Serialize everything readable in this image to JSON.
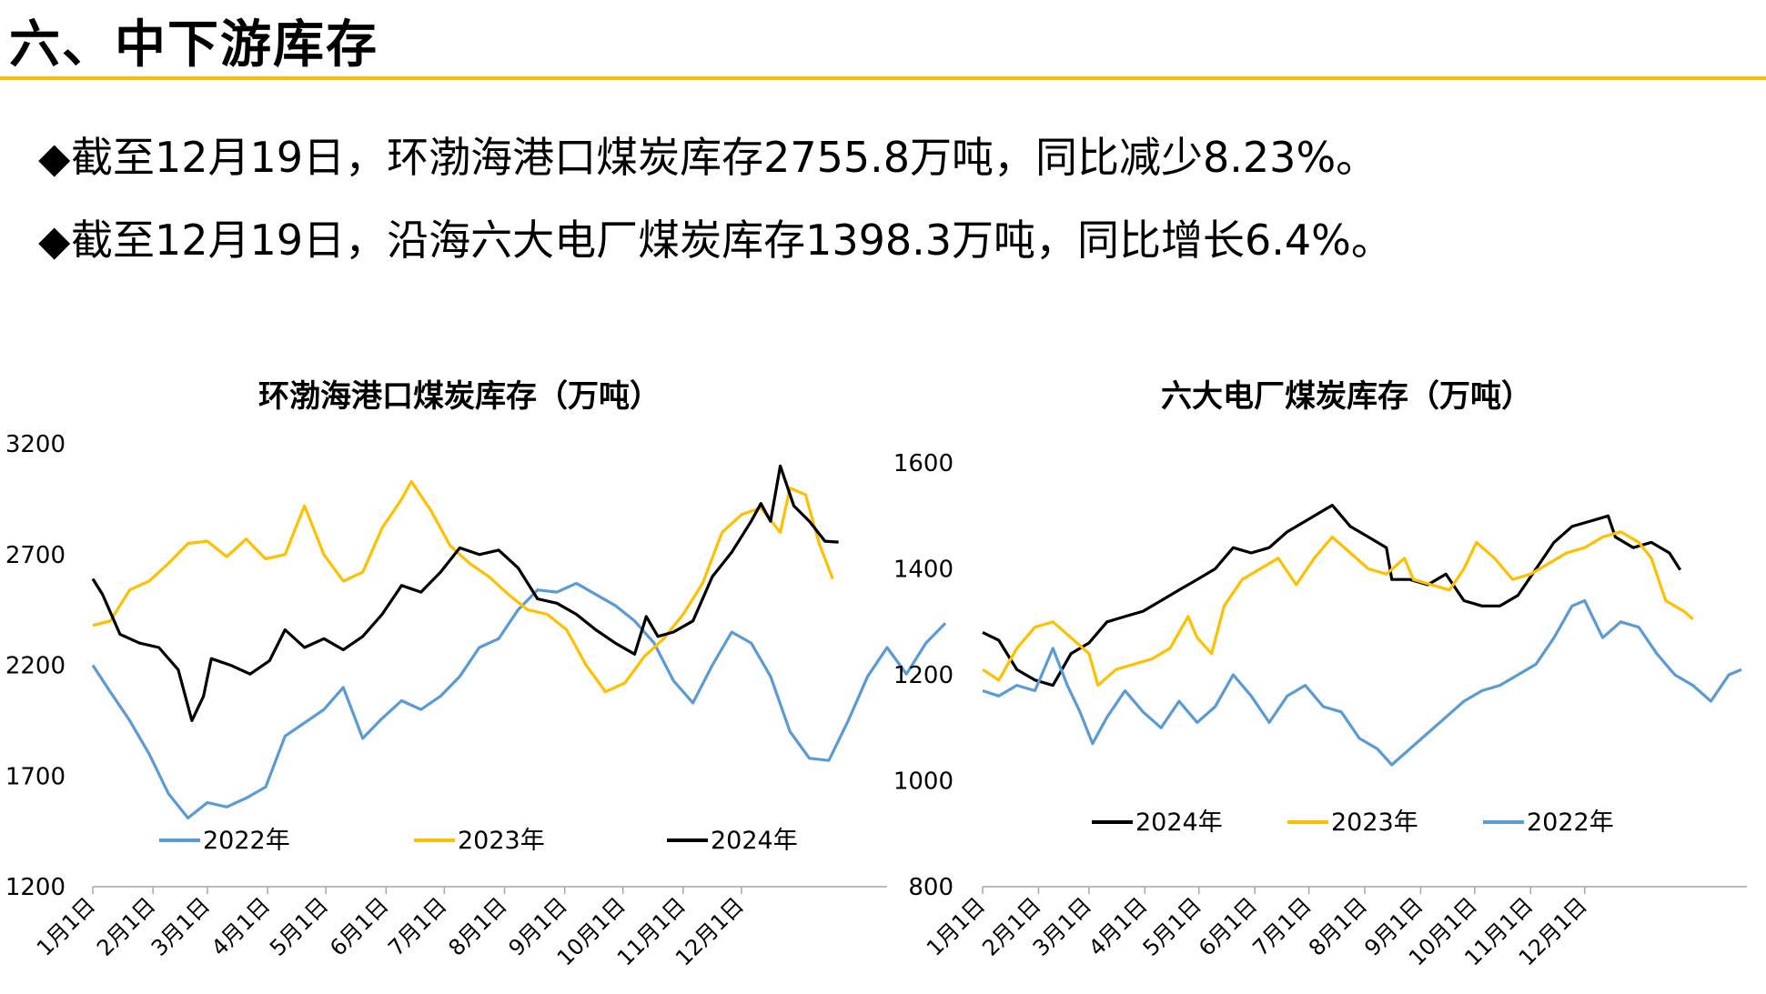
{
  "page": {
    "title": "六、中下游库存",
    "bullets": [
      {
        "icon": "◆",
        "text": "截至12月19日，环渤海港口煤炭库存2755.8万吨，同比减少8.23%。"
      },
      {
        "icon": "◆",
        "text": "截至12月19日，沿海六大电厂煤炭库存1398.3万吨，同比增长6.4%。"
      }
    ],
    "colors": {
      "accent_rule": "#F5C000"
    }
  },
  "chart_data": [
    {
      "type": "line",
      "title": "环渤海港口煤炭库存（万吨）",
      "xlabel": "",
      "ylabel": "",
      "x_unit": "day_of_year",
      "categories": [
        "1月1日",
        "2月1日",
        "3月1日",
        "4月1日",
        "5月1日",
        "6月1日",
        "7月1日",
        "8月1日",
        "9月1日",
        "10月1日",
        "11月1日",
        "12月1日"
      ],
      "ylim": [
        1200,
        3200
      ],
      "yticks": [
        "1200",
        "1700",
        "2200",
        "2700",
        "3200"
      ],
      "grid": false,
      "legend": "bottom",
      "series": [
        {
          "name": "2022年",
          "color": "#5B9BD5",
          "points": [
            [
              1,
              2200
            ],
            [
              10,
              2080
            ],
            [
              20,
              1950
            ],
            [
              30,
              1800
            ],
            [
              40,
              1620
            ],
            [
              50,
              1510
            ],
            [
              60,
              1580
            ],
            [
              70,
              1560
            ],
            [
              80,
              1600
            ],
            [
              90,
              1650
            ],
            [
              100,
              1880
            ],
            [
              110,
              1940
            ],
            [
              120,
              2000
            ],
            [
              130,
              2100
            ],
            [
              140,
              1870
            ],
            [
              150,
              1960
            ],
            [
              160,
              2040
            ],
            [
              170,
              2000
            ],
            [
              180,
              2060
            ],
            [
              190,
              2150
            ],
            [
              200,
              2280
            ],
            [
              210,
              2320
            ],
            [
              220,
              2450
            ],
            [
              230,
              2540
            ],
            [
              240,
              2530
            ],
            [
              250,
              2570
            ],
            [
              260,
              2520
            ],
            [
              270,
              2470
            ],
            [
              280,
              2400
            ],
            [
              290,
              2300
            ],
            [
              300,
              2130
            ],
            [
              310,
              2030
            ],
            [
              320,
              2200
            ],
            [
              330,
              2350
            ],
            [
              340,
              2300
            ],
            [
              350,
              2150
            ],
            [
              360,
              1900
            ],
            [
              370,
              1780
            ],
            [
              380,
              1770
            ],
            [
              390,
              1950
            ],
            [
              400,
              2150
            ],
            [
              410,
              2280
            ],
            [
              420,
              2160
            ],
            [
              430,
              2300
            ],
            [
              440,
              2390
            ]
          ]
        },
        {
          "name": "2023年",
          "color": "#FFC000",
          "points": [
            [
              1,
              2380
            ],
            [
              10,
              2400
            ],
            [
              20,
              2540
            ],
            [
              30,
              2580
            ],
            [
              40,
              2660
            ],
            [
              50,
              2750
            ],
            [
              60,
              2760
            ],
            [
              70,
              2690
            ],
            [
              80,
              2770
            ],
            [
              90,
              2680
            ],
            [
              100,
              2700
            ],
            [
              110,
              2920
            ],
            [
              120,
              2700
            ],
            [
              130,
              2580
            ],
            [
              140,
              2620
            ],
            [
              150,
              2820
            ],
            [
              160,
              2950
            ],
            [
              165,
              3030
            ],
            [
              175,
              2900
            ],
            [
              185,
              2740
            ],
            [
              195,
              2660
            ],
            [
              205,
              2600
            ],
            [
              215,
              2520
            ],
            [
              225,
              2450
            ],
            [
              235,
              2430
            ],
            [
              245,
              2360
            ],
            [
              255,
              2200
            ],
            [
              265,
              2080
            ],
            [
              275,
              2120
            ],
            [
              285,
              2240
            ],
            [
              295,
              2320
            ],
            [
              305,
              2430
            ],
            [
              315,
              2570
            ],
            [
              325,
              2800
            ],
            [
              335,
              2880
            ],
            [
              345,
              2910
            ],
            [
              355,
              2800
            ],
            [
              360,
              3000
            ],
            [
              368,
              2970
            ],
            [
              375,
              2750
            ],
            [
              382,
              2590
            ]
          ]
        },
        {
          "name": "2024年",
          "color": "#000000",
          "points": [
            [
              1,
              2590
            ],
            [
              6,
              2520
            ],
            [
              15,
              2340
            ],
            [
              25,
              2300
            ],
            [
              35,
              2280
            ],
            [
              45,
              2180
            ],
            [
              52,
              1950
            ],
            [
              58,
              2060
            ],
            [
              62,
              2230
            ],
            [
              72,
              2200
            ],
            [
              82,
              2160
            ],
            [
              92,
              2220
            ],
            [
              100,
              2360
            ],
            [
              110,
              2280
            ],
            [
              120,
              2320
            ],
            [
              130,
              2270
            ],
            [
              140,
              2330
            ],
            [
              150,
              2430
            ],
            [
              160,
              2560
            ],
            [
              170,
              2530
            ],
            [
              180,
              2620
            ],
            [
              190,
              2730
            ],
            [
              200,
              2700
            ],
            [
              210,
              2720
            ],
            [
              220,
              2640
            ],
            [
              230,
              2500
            ],
            [
              240,
              2480
            ],
            [
              250,
              2430
            ],
            [
              260,
              2360
            ],
            [
              270,
              2300
            ],
            [
              280,
              2250
            ],
            [
              286,
              2420
            ],
            [
              292,
              2330
            ],
            [
              300,
              2350
            ],
            [
              310,
              2400
            ],
            [
              320,
              2600
            ],
            [
              330,
              2710
            ],
            [
              340,
              2850
            ],
            [
              345,
              2930
            ],
            [
              350,
              2850
            ],
            [
              355,
              3100
            ],
            [
              362,
              2920
            ],
            [
              370,
              2850
            ],
            [
              378,
              2760
            ],
            [
              385,
              2756
            ]
          ]
        }
      ]
    },
    {
      "type": "line",
      "title": "六大电厂煤炭库存（万吨）",
      "xlabel": "",
      "ylabel": "",
      "x_unit": "day_of_year",
      "categories": [
        "1月1日",
        "2月1日",
        "3月1日",
        "4月1日",
        "5月1日",
        "6月1日",
        "7月1日",
        "8月1日",
        "9月1日",
        "10月1日",
        "11月1日",
        "12月1日"
      ],
      "ylim": [
        800,
        1600
      ],
      "yticks": [
        "800",
        "1000",
        "1200",
        "1400",
        "1600"
      ],
      "grid": false,
      "legend": "bottom",
      "series": [
        {
          "name": "2024年",
          "color": "#000000",
          "points": [
            [
              1,
              1280
            ],
            [
              10,
              1265
            ],
            [
              20,
              1210
            ],
            [
              30,
              1190
            ],
            [
              40,
              1180
            ],
            [
              50,
              1240
            ],
            [
              60,
              1260
            ],
            [
              70,
              1300
            ],
            [
              80,
              1310
            ],
            [
              90,
              1320
            ],
            [
              100,
              1340
            ],
            [
              110,
              1360
            ],
            [
              120,
              1380
            ],
            [
              130,
              1400
            ],
            [
              140,
              1440
            ],
            [
              150,
              1430
            ],
            [
              160,
              1440
            ],
            [
              170,
              1470
            ],
            [
              180,
              1490
            ],
            [
              190,
              1510
            ],
            [
              195,
              1520
            ],
            [
              205,
              1480
            ],
            [
              215,
              1460
            ],
            [
              225,
              1440
            ],
            [
              228,
              1380
            ],
            [
              238,
              1380
            ],
            [
              248,
              1370
            ],
            [
              258,
              1390
            ],
            [
              268,
              1340
            ],
            [
              278,
              1330
            ],
            [
              288,
              1330
            ],
            [
              298,
              1350
            ],
            [
              308,
              1400
            ],
            [
              318,
              1450
            ],
            [
              328,
              1480
            ],
            [
              338,
              1490
            ],
            [
              348,
              1500
            ],
            [
              352,
              1460
            ],
            [
              362,
              1440
            ],
            [
              372,
              1450
            ],
            [
              382,
              1430
            ],
            [
              388,
              1398
            ]
          ]
        },
        {
          "name": "2023年",
          "color": "#FFC000",
          "points": [
            [
              1,
              1210
            ],
            [
              10,
              1190
            ],
            [
              20,
              1250
            ],
            [
              30,
              1290
            ],
            [
              40,
              1300
            ],
            [
              50,
              1270
            ],
            [
              60,
              1240
            ],
            [
              65,
              1180
            ],
            [
              75,
              1210
            ],
            [
              85,
              1220
            ],
            [
              95,
              1230
            ],
            [
              105,
              1250
            ],
            [
              115,
              1310
            ],
            [
              120,
              1270
            ],
            [
              128,
              1240
            ],
            [
              135,
              1330
            ],
            [
              145,
              1380
            ],
            [
              155,
              1400
            ],
            [
              165,
              1420
            ],
            [
              175,
              1370
            ],
            [
              185,
              1420
            ],
            [
              195,
              1460
            ],
            [
              205,
              1430
            ],
            [
              215,
              1400
            ],
            [
              225,
              1390
            ],
            [
              235,
              1420
            ],
            [
              240,
              1380
            ],
            [
              250,
              1370
            ],
            [
              260,
              1360
            ],
            [
              268,
              1400
            ],
            [
              275,
              1450
            ],
            [
              285,
              1420
            ],
            [
              295,
              1380
            ],
            [
              305,
              1390
            ],
            [
              315,
              1410
            ],
            [
              325,
              1430
            ],
            [
              335,
              1440
            ],
            [
              345,
              1460
            ],
            [
              355,
              1470
            ],
            [
              365,
              1450
            ],
            [
              372,
              1420
            ],
            [
              380,
              1340
            ],
            [
              390,
              1320
            ],
            [
              395,
              1305
            ]
          ]
        },
        {
          "name": "2022年",
          "color": "#5B9BD5",
          "points": [
            [
              1,
              1170
            ],
            [
              10,
              1160
            ],
            [
              20,
              1180
            ],
            [
              30,
              1170
            ],
            [
              40,
              1250
            ],
            [
              48,
              1180
            ],
            [
              55,
              1130
            ],
            [
              62,
              1070
            ],
            [
              70,
              1120
            ],
            [
              80,
              1170
            ],
            [
              90,
              1130
            ],
            [
              100,
              1100
            ],
            [
              110,
              1150
            ],
            [
              120,
              1110
            ],
            [
              130,
              1140
            ],
            [
              140,
              1200
            ],
            [
              150,
              1160
            ],
            [
              160,
              1110
            ],
            [
              170,
              1160
            ],
            [
              180,
              1180
            ],
            [
              190,
              1140
            ],
            [
              200,
              1130
            ],
            [
              210,
              1080
            ],
            [
              220,
              1060
            ],
            [
              228,
              1030
            ],
            [
              238,
              1060
            ],
            [
              248,
              1090
            ],
            [
              258,
              1120
            ],
            [
              268,
              1150
            ],
            [
              278,
              1170
            ],
            [
              288,
              1180
            ],
            [
              298,
              1200
            ],
            [
              308,
              1220
            ],
            [
              318,
              1270
            ],
            [
              328,
              1330
            ],
            [
              335,
              1340
            ],
            [
              345,
              1270
            ],
            [
              355,
              1300
            ],
            [
              365,
              1290
            ],
            [
              375,
              1240
            ],
            [
              385,
              1200
            ],
            [
              395,
              1180
            ],
            [
              405,
              1150
            ],
            [
              415,
              1200
            ],
            [
              422,
              1210
            ]
          ]
        }
      ]
    }
  ]
}
